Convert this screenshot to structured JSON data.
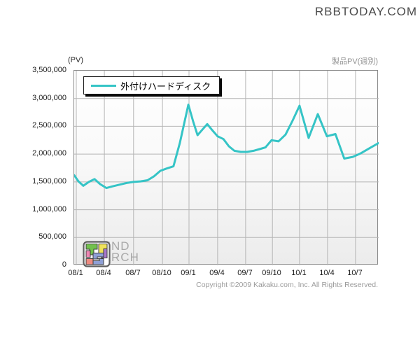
{
  "site": {
    "logo_text": "RBBTODAY.COM"
  },
  "chart": {
    "unit_label": "(PV)",
    "subtitle_right": "製品PV(週別)",
    "legend_label": "外付けハードディスク",
    "watermark_line1": "TREND",
    "watermark_line2": "SEARCH",
    "copyright": "Copyright ©2009 Kakaku.com, Inc. All Rights Reserved.",
    "line_color": "#35c4c6",
    "grid_color": "#b5b5b5"
  },
  "chart_data": {
    "type": "line",
    "title": "製品PV(週別)",
    "ylabel": "(PV)",
    "ylim": [
      0,
      3500000
    ],
    "grid": true,
    "legend_position": "top-left",
    "y_ticks": [
      {
        "value": 0,
        "label": "0"
      },
      {
        "value": 500000,
        "label": "500,000"
      },
      {
        "value": 1000000,
        "label": "1,000,000"
      },
      {
        "value": 1500000,
        "label": "1,500,000"
      },
      {
        "value": 2000000,
        "label": "2,000,000"
      },
      {
        "value": 2500000,
        "label": "2,500,000"
      },
      {
        "value": 3000000,
        "label": "3,000,000"
      },
      {
        "value": 3500000,
        "label": "3,500,000"
      }
    ],
    "x_ticks": [
      {
        "label": "08/1",
        "pos": 0.007
      },
      {
        "label": "08/4",
        "pos": 0.099
      },
      {
        "label": "08/7",
        "pos": 0.195
      },
      {
        "label": "08/10",
        "pos": 0.29
      },
      {
        "label": "09/1",
        "pos": 0.377
      },
      {
        "label": "09/4",
        "pos": 0.471
      },
      {
        "label": "09/7",
        "pos": 0.563
      },
      {
        "label": "09/10",
        "pos": 0.651
      },
      {
        "label": "10/1",
        "pos": 0.74
      },
      {
        "label": "10/4",
        "pos": 0.832
      },
      {
        "label": "10/7",
        "pos": 0.924
      }
    ],
    "series": [
      {
        "name": "外付けハードディスク",
        "color": "#35c4c6",
        "points": [
          {
            "x": 0.0,
            "pv": 1620000
          },
          {
            "x": 0.014,
            "pv": 1510000
          },
          {
            "x": 0.03,
            "pv": 1430000
          },
          {
            "x": 0.048,
            "pv": 1500000
          },
          {
            "x": 0.067,
            "pv": 1550000
          },
          {
            "x": 0.085,
            "pv": 1460000
          },
          {
            "x": 0.106,
            "pv": 1390000
          },
          {
            "x": 0.126,
            "pv": 1420000
          },
          {
            "x": 0.149,
            "pv": 1450000
          },
          {
            "x": 0.172,
            "pv": 1480000
          },
          {
            "x": 0.195,
            "pv": 1500000
          },
          {
            "x": 0.218,
            "pv": 1510000
          },
          {
            "x": 0.241,
            "pv": 1530000
          },
          {
            "x": 0.262,
            "pv": 1600000
          },
          {
            "x": 0.283,
            "pv": 1700000
          },
          {
            "x": 0.303,
            "pv": 1740000
          },
          {
            "x": 0.326,
            "pv": 1780000
          },
          {
            "x": 0.347,
            "pv": 2200000
          },
          {
            "x": 0.375,
            "pv": 2890000
          },
          {
            "x": 0.391,
            "pv": 2580000
          },
          {
            "x": 0.405,
            "pv": 2340000
          },
          {
            "x": 0.421,
            "pv": 2440000
          },
          {
            "x": 0.437,
            "pv": 2540000
          },
          {
            "x": 0.455,
            "pv": 2420000
          },
          {
            "x": 0.471,
            "pv": 2320000
          },
          {
            "x": 0.49,
            "pv": 2270000
          },
          {
            "x": 0.508,
            "pv": 2140000
          },
          {
            "x": 0.526,
            "pv": 2060000
          },
          {
            "x": 0.547,
            "pv": 2040000
          },
          {
            "x": 0.568,
            "pv": 2040000
          },
          {
            "x": 0.589,
            "pv": 2060000
          },
          {
            "x": 0.609,
            "pv": 2090000
          },
          {
            "x": 0.628,
            "pv": 2120000
          },
          {
            "x": 0.648,
            "pv": 2250000
          },
          {
            "x": 0.671,
            "pv": 2230000
          },
          {
            "x": 0.694,
            "pv": 2350000
          },
          {
            "x": 0.717,
            "pv": 2600000
          },
          {
            "x": 0.74,
            "pv": 2870000
          },
          {
            "x": 0.77,
            "pv": 2290000
          },
          {
            "x": 0.8,
            "pv": 2720000
          },
          {
            "x": 0.83,
            "pv": 2320000
          },
          {
            "x": 0.858,
            "pv": 2360000
          },
          {
            "x": 0.887,
            "pv": 1920000
          },
          {
            "x": 0.915,
            "pv": 1950000
          },
          {
            "x": 0.94,
            "pv": 2010000
          },
          {
            "x": 0.968,
            "pv": 2100000
          },
          {
            "x": 1.0,
            "pv": 2200000
          }
        ]
      }
    ]
  }
}
